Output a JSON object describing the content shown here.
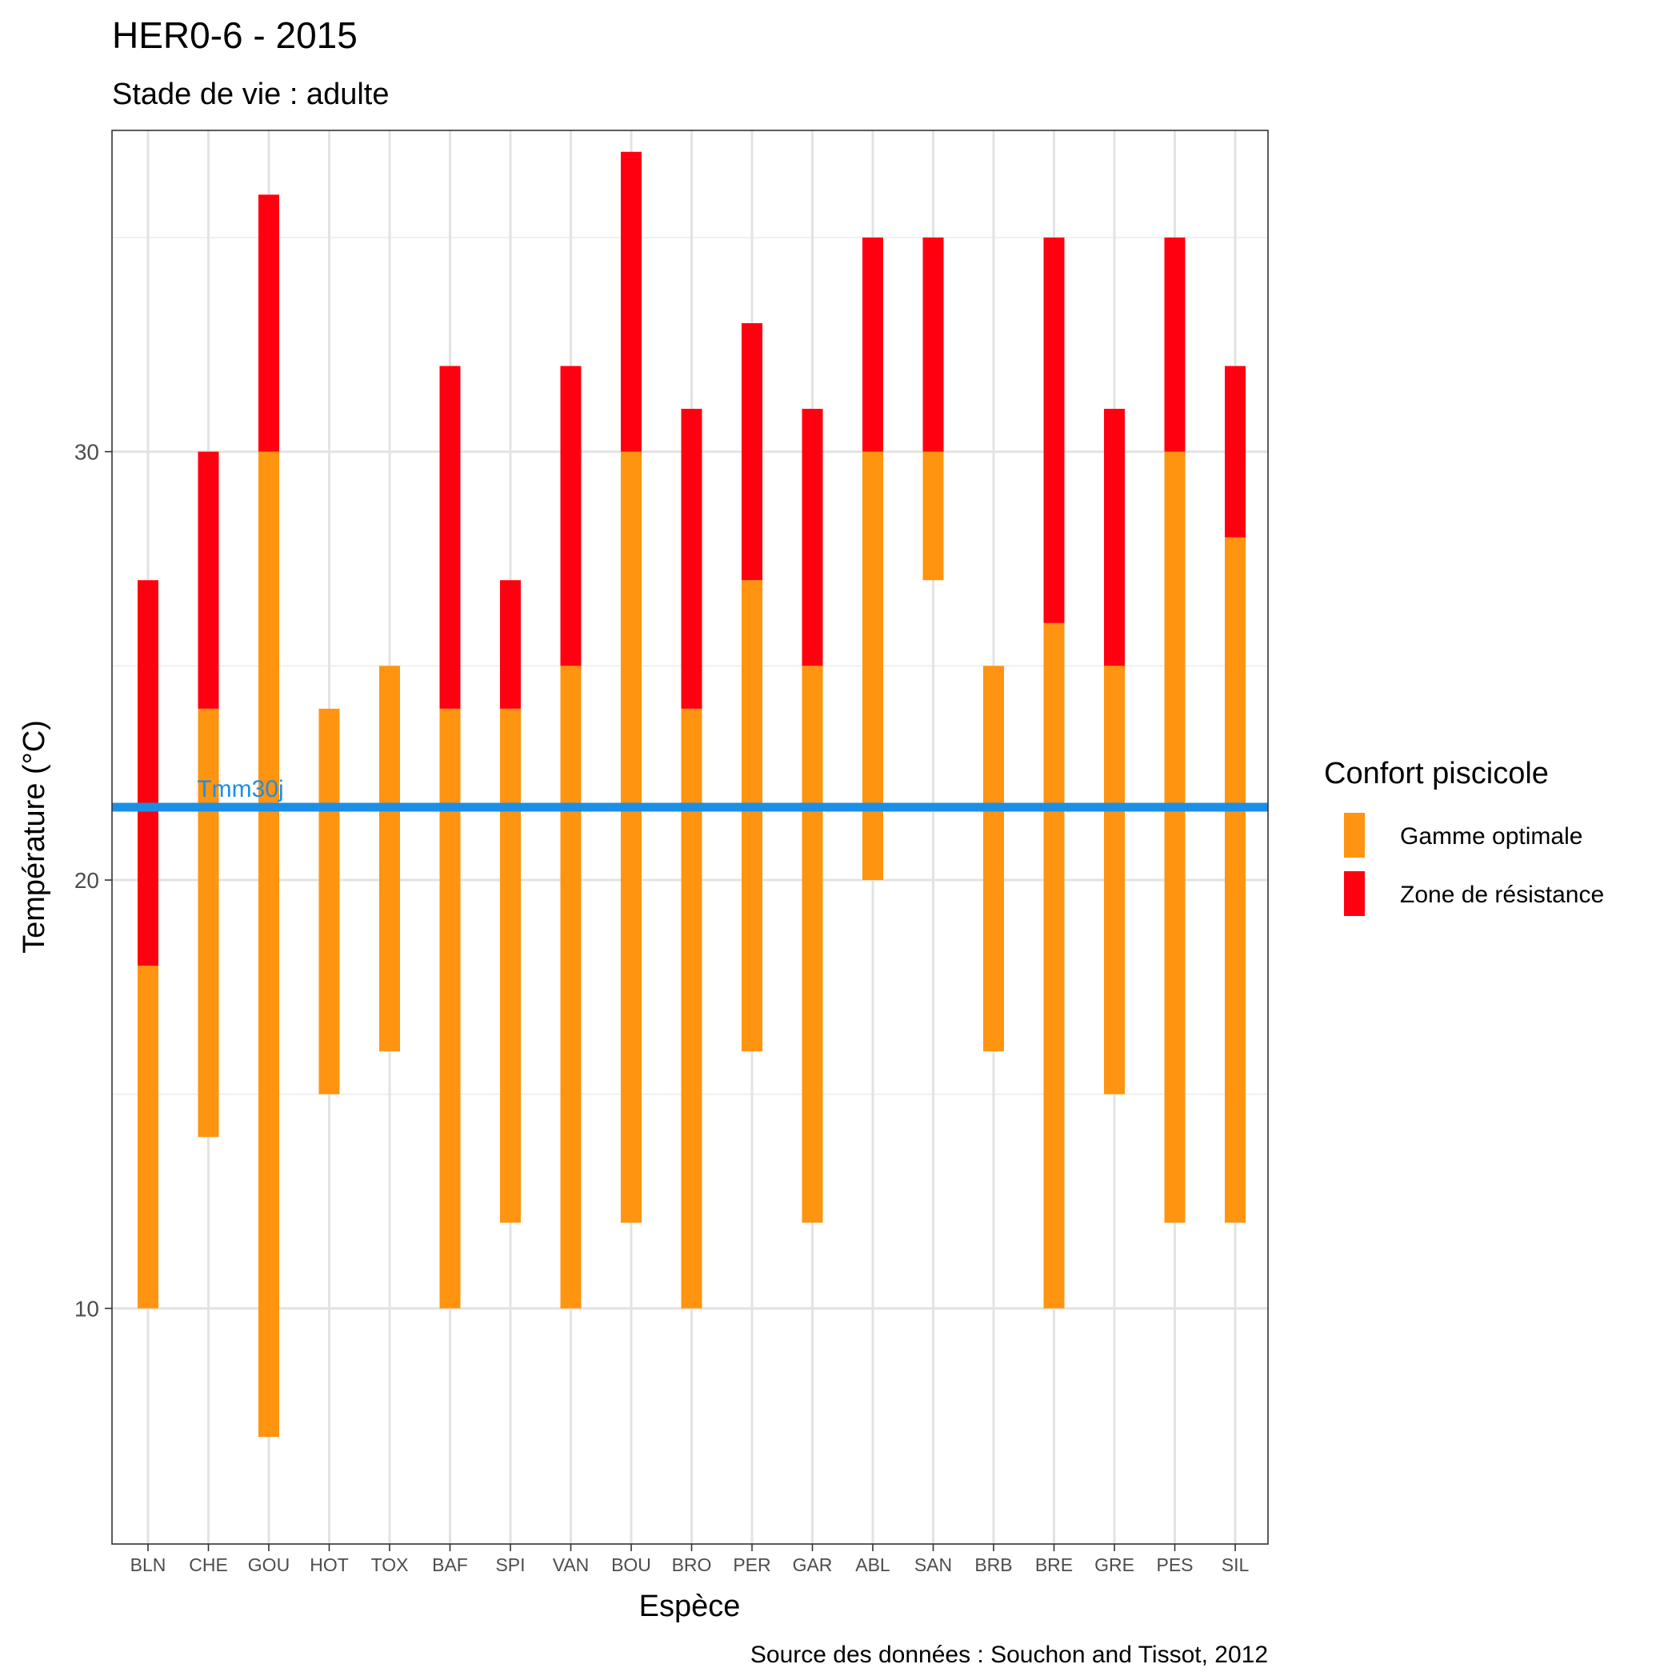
{
  "chart_data": {
    "type": "bar",
    "title": "HER0-6 - 2015",
    "subtitle": "Stade de vie : adulte",
    "xlabel": "Espèce",
    "ylabel": "Température (°C)",
    "caption": "Source des données : Souchon and Tissot, 2012",
    "ylim": [
      4.5,
      37.5
    ],
    "yticks": [
      10,
      20,
      30
    ],
    "y_minor_ticks": [
      15,
      25,
      35
    ],
    "grid": true,
    "legend": {
      "title": "Confort piscicole",
      "position": "right",
      "items": [
        {
          "label": "Gamme optimale",
          "color": "#FF9410"
        },
        {
          "label": "Zone de résistance",
          "color": "#FF0010"
        }
      ]
    },
    "reference_line": {
      "label": "Tmm30j",
      "value": 21.7,
      "color": "#1B8FE6"
    },
    "categories": [
      "BLN",
      "CHE",
      "GOU",
      "HOT",
      "TOX",
      "BAF",
      "SPI",
      "VAN",
      "BOU",
      "BRO",
      "PER",
      "GAR",
      "ABL",
      "SAN",
      "BRB",
      "BRE",
      "GRE",
      "PES",
      "SIL"
    ],
    "series": [
      {
        "name": "Gamme optimale",
        "color": "#FF9410",
        "ranges": [
          [
            10,
            18
          ],
          [
            14,
            24
          ],
          [
            7,
            30
          ],
          [
            15,
            24
          ],
          [
            16,
            25
          ],
          [
            10,
            24
          ],
          [
            12,
            24
          ],
          [
            10,
            25
          ],
          [
            12,
            30
          ],
          [
            10,
            24
          ],
          [
            16,
            27
          ],
          [
            12,
            25
          ],
          [
            20,
            30
          ],
          [
            27,
            30
          ],
          [
            16,
            25
          ],
          [
            10,
            26
          ],
          [
            15,
            25
          ],
          [
            12,
            30
          ],
          [
            12,
            28
          ]
        ]
      },
      {
        "name": "Zone de résistance",
        "color": "#FF0010",
        "ranges": [
          [
            18,
            27
          ],
          [
            24,
            30
          ],
          [
            30,
            36
          ],
          null,
          null,
          [
            24,
            32
          ],
          [
            24,
            27
          ],
          [
            25,
            32
          ],
          [
            30,
            37
          ],
          [
            24,
            31
          ],
          [
            27,
            33
          ],
          [
            25,
            31
          ],
          [
            30,
            35
          ],
          [
            30,
            35
          ],
          null,
          [
            26,
            35
          ],
          [
            25,
            31
          ],
          [
            30,
            35
          ],
          [
            28,
            32
          ]
        ]
      }
    ]
  }
}
